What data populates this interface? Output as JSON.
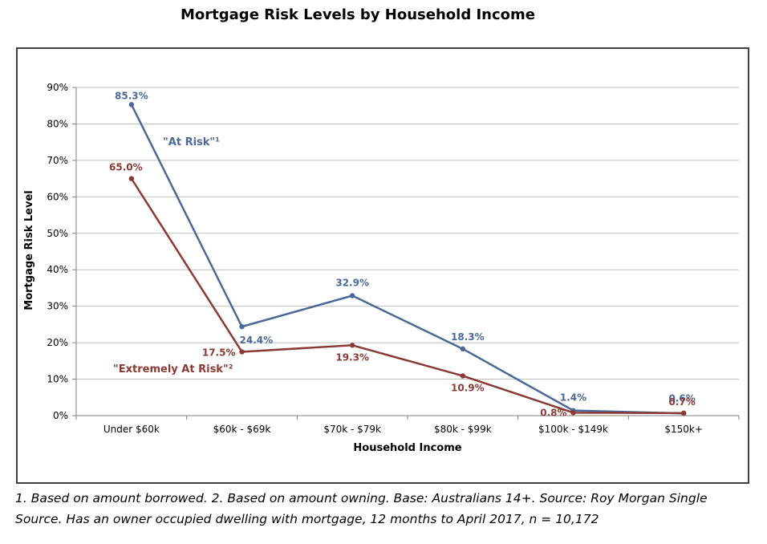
{
  "title": "Mortgage Risk Levels by Household Income",
  "footnote": {
    "line1": "1. Based on amount borrowed. 2. Based on amount owning. Base: Australians 14+. Source: Roy Morgan Single",
    "line2": "Source. Has an owner occupied dwelling with mortgage, 12 months to April 2017, n = 10,172"
  },
  "chart_data": {
    "type": "line",
    "title": "Mortgage Risk Levels by Household Income",
    "xlabel": "Household Income",
    "ylabel": "Mortgage Risk Level",
    "categories": [
      "Under $60k",
      "$60k - $69k",
      "$70k - $79k",
      "$80k - $99k",
      "$100k - $149k",
      "$150k+"
    ],
    "ylim": [
      0,
      90
    ],
    "yticks": [
      "0%",
      "10%",
      "20%",
      "30%",
      "40%",
      "50%",
      "60%",
      "70%",
      "80%",
      "90%"
    ],
    "grid": true,
    "series": [
      {
        "name": "\"At Risk\"¹",
        "color": "#4a6899",
        "values": [
          85.3,
          24.4,
          32.9,
          18.3,
          1.4,
          0.6
        ],
        "labels": [
          "85.3%",
          "24.4%",
          "32.9%",
          "18.3%",
          "1.4%",
          "0.6%"
        ]
      },
      {
        "name": "\"Extremely At Risk\"²",
        "color": "#8b3a33",
        "values": [
          65.0,
          17.5,
          19.3,
          10.9,
          0.8,
          0.7
        ],
        "labels": [
          "65.0%",
          "17.5%",
          "19.3%",
          "10.9%",
          "0.8%",
          "0.7%"
        ]
      }
    ]
  }
}
